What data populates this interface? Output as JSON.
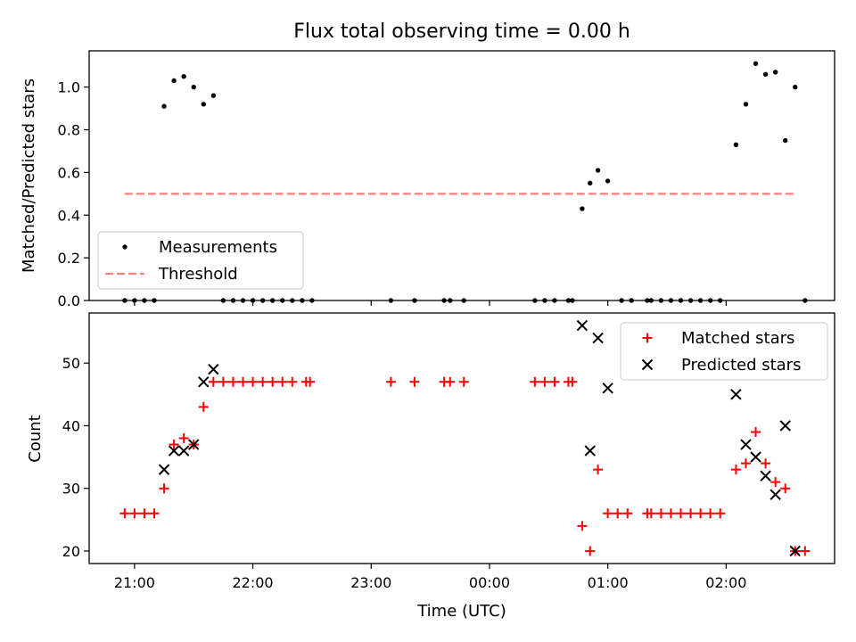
{
  "chart_data": [
    {
      "type": "scatter",
      "title": "Flux total observing time = 0.00 h",
      "xlabel": "",
      "ylabel": "Matched/Predicted stars",
      "x_unit": "time (UTC)",
      "xlim": [
        "20:37",
        "02:55"
      ],
      "ylim": [
        0,
        1.17
      ],
      "x_ticks": [
        "21:00",
        "22:00",
        "23:00",
        "00:00",
        "01:00",
        "02:00"
      ],
      "y_ticks": [
        "0.0",
        "0.2",
        "0.4",
        "0.6",
        "0.8",
        "1.0"
      ],
      "legend": "lower-left",
      "series": [
        {
          "name": "Measurements",
          "style": "dot",
          "color": "#000000",
          "points": [
            [
              "20:55",
              0
            ],
            [
              "21:00",
              0
            ],
            [
              "21:05",
              0
            ],
            [
              "21:10",
              0
            ],
            [
              "21:15",
              0.91
            ],
            [
              "21:20",
              1.03
            ],
            [
              "21:25",
              1.05
            ],
            [
              "21:30",
              1.0
            ],
            [
              "21:35",
              0.92
            ],
            [
              "21:40",
              0.96
            ],
            [
              "21:45",
              0
            ],
            [
              "21:50",
              0
            ],
            [
              "21:55",
              0
            ],
            [
              "22:00",
              0
            ],
            [
              "22:05",
              0
            ],
            [
              "22:10",
              0
            ],
            [
              "22:15",
              0
            ],
            [
              "22:20",
              0
            ],
            [
              "22:25",
              0
            ],
            [
              "22:30",
              0
            ],
            [
              "23:10",
              0
            ],
            [
              "23:22",
              0
            ],
            [
              "23:37",
              0
            ],
            [
              "23:40",
              0
            ],
            [
              "23:47",
              0
            ],
            [
              "00:23",
              0
            ],
            [
              "00:28",
              0
            ],
            [
              "00:33",
              0
            ],
            [
              "00:40",
              0
            ],
            [
              "00:42",
              0
            ],
            [
              "00:47",
              0.43
            ],
            [
              "00:51",
              0.55
            ],
            [
              "00:55",
              0.61
            ],
            [
              "01:00",
              0.56
            ],
            [
              "01:07",
              0
            ],
            [
              "01:12",
              0
            ],
            [
              "01:20",
              0
            ],
            [
              "01:22",
              0
            ],
            [
              "01:27",
              0
            ],
            [
              "01:32",
              0
            ],
            [
              "01:37",
              0
            ],
            [
              "01:42",
              0
            ],
            [
              "01:47",
              0
            ],
            [
              "01:52",
              0
            ],
            [
              "01:57",
              0
            ],
            [
              "02:05",
              0.73
            ],
            [
              "02:10",
              0.92
            ],
            [
              "02:15",
              1.11
            ],
            [
              "02:20",
              1.06
            ],
            [
              "02:25",
              1.07
            ],
            [
              "02:30",
              0.75
            ],
            [
              "02:35",
              1.0
            ],
            [
              "02:40",
              0
            ]
          ]
        },
        {
          "name": "Threshold",
          "style": "dashed-line",
          "color": "#ff7f7f",
          "points": [
            [
              "20:55",
              0.5
            ],
            [
              "02:35",
              0.5
            ]
          ]
        }
      ]
    },
    {
      "type": "scatter",
      "title": "",
      "xlabel": "Time (UTC)",
      "ylabel": "Count",
      "xlim": [
        "20:37",
        "02:55"
      ],
      "ylim": [
        18,
        58
      ],
      "x_ticks": [
        "21:00",
        "22:00",
        "23:00",
        "00:00",
        "01:00",
        "02:00"
      ],
      "y_ticks": [
        "20",
        "30",
        "40",
        "50"
      ],
      "legend": "upper-right",
      "series": [
        {
          "name": "Matched stars",
          "style": "plus",
          "color": "#ff0000",
          "points": [
            [
              "20:55",
              26
            ],
            [
              "21:00",
              26
            ],
            [
              "21:05",
              26
            ],
            [
              "21:10",
              26
            ],
            [
              "21:15",
              30
            ],
            [
              "21:20",
              37
            ],
            [
              "21:25",
              38
            ],
            [
              "21:30",
              37
            ],
            [
              "21:35",
              43
            ],
            [
              "21:40",
              47
            ],
            [
              "21:45",
              47
            ],
            [
              "21:50",
              47
            ],
            [
              "21:55",
              47
            ],
            [
              "22:00",
              47
            ],
            [
              "22:05",
              47
            ],
            [
              "22:10",
              47
            ],
            [
              "22:15",
              47
            ],
            [
              "22:20",
              47
            ],
            [
              "22:27",
              47
            ],
            [
              "22:29",
              47
            ],
            [
              "23:10",
              47
            ],
            [
              "23:22",
              47
            ],
            [
              "23:37",
              47
            ],
            [
              "23:40",
              47
            ],
            [
              "23:47",
              47
            ],
            [
              "00:23",
              47
            ],
            [
              "00:28",
              47
            ],
            [
              "00:33",
              47
            ],
            [
              "00:40",
              47
            ],
            [
              "00:42",
              47
            ],
            [
              "00:47",
              24
            ],
            [
              "00:51",
              20
            ],
            [
              "00:55",
              33
            ],
            [
              "01:00",
              26
            ],
            [
              "01:05",
              26
            ],
            [
              "01:10",
              26
            ],
            [
              "01:20",
              26
            ],
            [
              "01:22",
              26
            ],
            [
              "01:27",
              26
            ],
            [
              "01:32",
              26
            ],
            [
              "01:37",
              26
            ],
            [
              "01:42",
              26
            ],
            [
              "01:47",
              26
            ],
            [
              "01:52",
              26
            ],
            [
              "01:57",
              26
            ],
            [
              "02:05",
              33
            ],
            [
              "02:10",
              34
            ],
            [
              "02:15",
              39
            ],
            [
              "02:20",
              34
            ],
            [
              "02:25",
              31
            ],
            [
              "02:30",
              30
            ],
            [
              "02:35",
              20
            ],
            [
              "02:40",
              20
            ]
          ]
        },
        {
          "name": "Predicted stars",
          "style": "x",
          "color": "#000000",
          "points": [
            [
              "21:15",
              33
            ],
            [
              "21:20",
              36
            ],
            [
              "21:25",
              36
            ],
            [
              "21:30",
              37
            ],
            [
              "21:35",
              47
            ],
            [
              "21:40",
              49
            ],
            [
              "00:47",
              56
            ],
            [
              "00:51",
              36
            ],
            [
              "00:55",
              54
            ],
            [
              "01:00",
              46
            ],
            [
              "02:05",
              45
            ],
            [
              "02:10",
              37
            ],
            [
              "02:15",
              35
            ],
            [
              "02:20",
              32
            ],
            [
              "02:25",
              29
            ],
            [
              "02:30",
              40
            ],
            [
              "02:35",
              20
            ]
          ]
        }
      ]
    }
  ]
}
